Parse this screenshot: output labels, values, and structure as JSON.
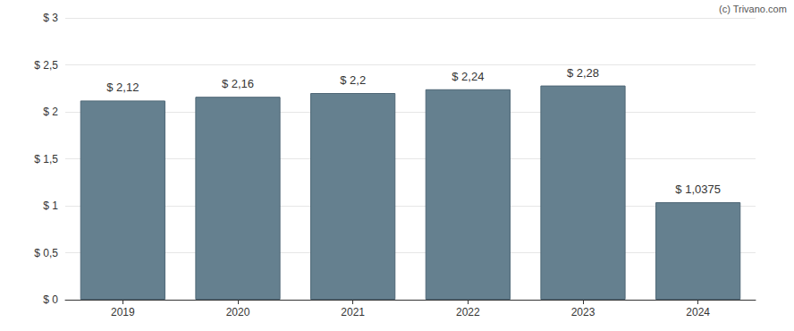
{
  "chart_data": {
    "type": "bar",
    "annotations": [
      "(c) Trivano.com"
    ],
    "categories": [
      "2019",
      "2020",
      "2021",
      "2022",
      "2023",
      "2024"
    ],
    "values": [
      2.12,
      2.16,
      2.2,
      2.24,
      2.28,
      1.0375
    ],
    "value_labels": [
      "$ 2,12",
      "$ 2,16",
      "$ 2,2",
      "$ 2,24",
      "$ 2,28",
      "$ 1,0375"
    ],
    "data_labels": true,
    "color": "#65808f",
    "ylim": [
      0,
      3
    ],
    "yticks": [
      {
        "value": 0,
        "label": "$ 0"
      },
      {
        "value": 0.5,
        "label": "$ 0,5"
      },
      {
        "value": 1,
        "label": "$ 1"
      },
      {
        "value": 1.5,
        "label": "$ 1,5"
      },
      {
        "value": 2,
        "label": "$ 2"
      },
      {
        "value": 2.5,
        "label": "$ 2,5"
      },
      {
        "value": 3,
        "label": "$ 3"
      }
    ],
    "grid": true
  }
}
